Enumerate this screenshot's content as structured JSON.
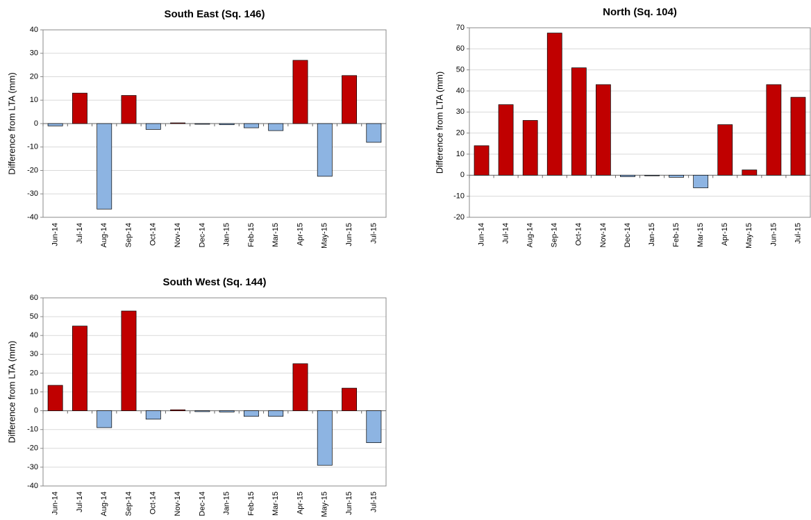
{
  "chart_data": [
    {
      "type": "bar",
      "title": "South East (Sq. 146)",
      "y_label": "Difference from LTA (mm)",
      "categories": [
        "Jun-14",
        "Jul-14",
        "Aug-14",
        "Sep-14",
        "Oct-14",
        "Nov-14",
        "Dec-14",
        "Jan-15",
        "Feb-15",
        "Mar-15",
        "Apr-15",
        "May-15",
        "Jun-15",
        "Jul-15"
      ],
      "values": [
        -1,
        13,
        -36.5,
        12,
        -2.5,
        0.3,
        -0.3,
        -0.5,
        -1.8,
        -3,
        27,
        -22.5,
        20.5,
        -8
      ],
      "positive_color": "#c00000",
      "negative_color": "#8db4e2",
      "ylim": [
        -40,
        40
      ],
      "yticks": [
        -40,
        -30,
        -20,
        -10,
        0,
        10,
        20,
        30,
        40
      ],
      "grid": true
    },
    {
      "type": "bar",
      "title": "North (Sq. 104)",
      "y_label": "Difference from LTA (mm)",
      "categories": [
        "Jun-14",
        "Jul-14",
        "Aug-14",
        "Sep-14",
        "Oct-14",
        "Nov-14",
        "Dec-14",
        "Jan-15",
        "Feb-15",
        "Mar-15",
        "Apr-15",
        "May-15",
        "Jun-15",
        "Jul-15"
      ],
      "values": [
        14,
        33.5,
        26,
        67.5,
        51,
        43,
        -0.7,
        -0.3,
        -1,
        -6,
        24,
        2.5,
        43,
        37
      ],
      "positive_color": "#c00000",
      "negative_color": "#8db4e2",
      "ylim": [
        -20,
        70
      ],
      "yticks": [
        -20,
        -10,
        0,
        10,
        20,
        30,
        40,
        50,
        60,
        70
      ],
      "grid": true
    },
    {
      "type": "bar",
      "title": "South West (Sq. 144)",
      "y_label": "Difference from LTA (mm)",
      "categories": [
        "Jun-14",
        "Jul-14",
        "Aug-14",
        "Sep-14",
        "Oct-14",
        "Nov-14",
        "Dec-14",
        "Jan-15",
        "Feb-15",
        "Mar-15",
        "Apr-15",
        "May-15",
        "Jun-15",
        "Jul-15"
      ],
      "values": [
        13.5,
        45,
        -9,
        53,
        -4.5,
        0.5,
        -0.5,
        -0.7,
        -3,
        -3,
        25,
        -29,
        12,
        -17
      ],
      "positive_color": "#c00000",
      "negative_color": "#8db4e2",
      "ylim": [
        -40,
        60
      ],
      "yticks": [
        -40,
        -30,
        -20,
        -10,
        0,
        10,
        20,
        30,
        40,
        50,
        60
      ],
      "grid": true
    }
  ]
}
